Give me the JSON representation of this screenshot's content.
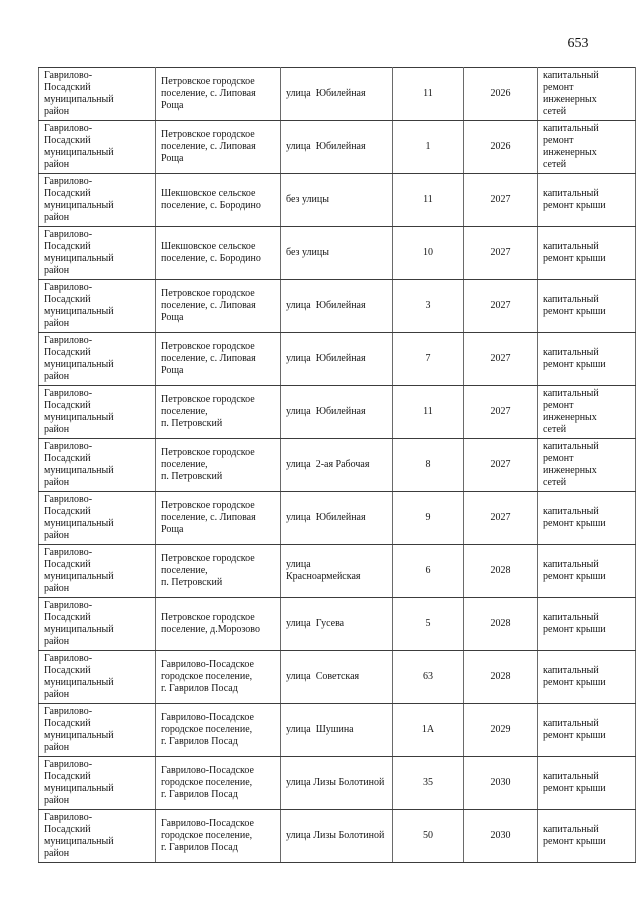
{
  "page": {
    "number": "653"
  },
  "table": {
    "column_keys": [
      "district",
      "settlement",
      "street",
      "house_number",
      "year",
      "repair_type"
    ],
    "rows": [
      {
        "district": "Гаврилово-\nПосадский\nмуниципальный\nрайон",
        "settlement": "Петровское городское\nпоселение, с. Липовая\nРоща",
        "street": "улица  Юбилейная",
        "house_number": "11",
        "year": "2026",
        "repair_type": "капитальный\nремонт\nинженерных\nсетей"
      },
      {
        "district": "Гаврилово-\nПосадский\nмуниципальный\nрайон",
        "settlement": "Петровское городское\nпоселение, с. Липовая\nРоща",
        "street": "улица  Юбилейная",
        "house_number": "1",
        "year": "2026",
        "repair_type": "капитальный\nремонт\nинженерных\nсетей"
      },
      {
        "district": "Гаврилово-\nПосадский\nмуниципальный\nрайон",
        "settlement": "Шекшовское сельское\nпоселение, с. Бородино",
        "street": "без улицы",
        "house_number": "11",
        "year": "2027",
        "repair_type": "капитальный\nремонт крыши"
      },
      {
        "district": "Гаврилово-\nПосадский\nмуниципальный\nрайон",
        "settlement": "Шекшовское сельское\nпоселение, с. Бородино",
        "street": "без улицы",
        "house_number": "10",
        "year": "2027",
        "repair_type": "капитальный\nремонт крыши"
      },
      {
        "district": "Гаврилово-\nПосадский\nмуниципальный\nрайон",
        "settlement": "Петровское городское\nпоселение, с. Липовая\nРоща",
        "street": "улица  Юбилейная",
        "house_number": "3",
        "year": "2027",
        "repair_type": "капитальный\nремонт крыши"
      },
      {
        "district": "Гаврилово-\nПосадский\nмуниципальный\nрайон",
        "settlement": "Петровское городское\nпоселение, с. Липовая\nРоща",
        "street": "улица  Юбилейная",
        "house_number": "7",
        "year": "2027",
        "repair_type": "капитальный\nремонт крыши"
      },
      {
        "district": "Гаврилово-\nПосадский\nмуниципальный\nрайон",
        "settlement": "Петровское городское\nпоселение,\nп. Петровский",
        "street": "улица  Юбилейная",
        "house_number": "11",
        "year": "2027",
        "repair_type": "капитальный\nремонт\nинженерных\nсетей"
      },
      {
        "district": "Гаврилово-\nПосадский\nмуниципальный\nрайон",
        "settlement": "Петровское городское\nпоселение,\nп. Петровский",
        "street": "улица  2-ая Рабочая",
        "house_number": "8",
        "year": "2027",
        "repair_type": "капитальный\nремонт\nинженерных\nсетей"
      },
      {
        "district": "Гаврилово-\nПосадский\nмуниципальный\nрайон",
        "settlement": "Петровское городское\nпоселение, с. Липовая\nРоща",
        "street": "улица  Юбилейная",
        "house_number": "9",
        "year": "2027",
        "repair_type": "капитальный\nремонт крыши"
      },
      {
        "district": "Гаврилово-\nПосадский\nмуниципальный\nрайон",
        "settlement": "Петровское городское\nпоселение,\nп. Петровский",
        "street": "улица\nКрасноармейская",
        "house_number": "6",
        "year": "2028",
        "repair_type": "капитальный\nремонт крыши"
      },
      {
        "district": "Гаврилово-\nПосадский\nмуниципальный\nрайон",
        "settlement": "Петровское городское\nпоселение, д.Морозово",
        "street": "улица  Гусева",
        "house_number": "5",
        "year": "2028",
        "repair_type": "капитальный\nремонт крыши"
      },
      {
        "district": "Гаврилово-\nПосадский\nмуниципальный\nрайон",
        "settlement": "Гаврилово-Посадское\nгородское поселение,\nг. Гаврилов Посад",
        "street": "улица  Советская",
        "house_number": "63",
        "year": "2028",
        "repair_type": "капитальный\nремонт крыши"
      },
      {
        "district": "Гаврилово-\nПосадский\nмуниципальный\nрайон",
        "settlement": "Гаврилово-Посадское\nгородское поселение,\nг. Гаврилов Посад",
        "street": "улица  Шушина",
        "house_number": "1А",
        "year": "2029",
        "repair_type": "капитальный\nремонт крыши"
      },
      {
        "district": "Гаврилово-\nПосадский\nмуниципальный\nрайон",
        "settlement": "Гаврилово-Посадское\nгородское поселение,\nг. Гаврилов Посад",
        "street": "улица Лизы Болотиной",
        "house_number": "35",
        "year": "2030",
        "repair_type": "капитальный\nремонт крыши"
      },
      {
        "district": "Гаврилово-\nПосадский\nмуниципальный\nрайон",
        "settlement": "Гаврилово-Посадское\nгородское поселение,\nг. Гаврилов Посад",
        "street": "улица Лизы Болотиной",
        "house_number": "50",
        "year": "2030",
        "repair_type": "капитальный\nремонт крыши"
      }
    ]
  }
}
